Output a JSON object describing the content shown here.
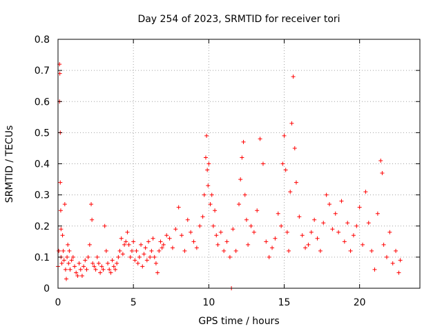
{
  "chart_data": {
    "type": "scatter",
    "title": "Day 254 of 2023, SRMTID for receiver tori",
    "xlabel": "GPS time / hours",
    "ylabel": "SRMTID / TECUs",
    "xlim": [
      0,
      24
    ],
    "ylim": [
      0,
      0.8
    ],
    "xticks": [
      0,
      5,
      10,
      15,
      20
    ],
    "yticks": [
      0,
      0.1,
      0.2,
      0.3,
      0.4,
      0.5,
      0.6,
      0.7,
      0.8
    ],
    "grid": true,
    "marker": "plus",
    "color": "#ff0000",
    "series": [
      {
        "name": "tori",
        "x": [
          0.0,
          0.05,
          0.1,
          0.1,
          0.12,
          0.15,
          0.15,
          0.18,
          0.2,
          0.2,
          0.25,
          0.3,
          0.35,
          0.4,
          0.45,
          0.5,
          0.55,
          0.6,
          0.65,
          0.7,
          0.75,
          0.8,
          0.9,
          1.0,
          1.1,
          1.2,
          1.3,
          1.4,
          1.5,
          1.6,
          1.7,
          1.8,
          1.9,
          2.0,
          2.1,
          2.2,
          2.25,
          2.3,
          2.4,
          2.5,
          2.6,
          2.7,
          2.8,
          2.9,
          3.0,
          3.1,
          3.2,
          3.3,
          3.4,
          3.5,
          3.6,
          3.7,
          3.8,
          3.9,
          4.0,
          4.1,
          4.2,
          4.3,
          4.4,
          4.5,
          4.6,
          4.7,
          4.8,
          4.9,
          5.0,
          5.1,
          5.2,
          5.3,
          5.4,
          5.5,
          5.6,
          5.7,
          5.8,
          5.9,
          6.0,
          6.1,
          6.2,
          6.3,
          6.4,
          6.5,
          6.6,
          6.7,
          6.8,
          6.9,
          7.0,
          7.2,
          7.4,
          7.6,
          7.8,
          8.0,
          8.2,
          8.4,
          8.6,
          8.8,
          9.0,
          9.2,
          9.4,
          9.6,
          9.7,
          9.8,
          9.85,
          9.9,
          9.95,
          10.0,
          10.1,
          10.2,
          10.3,
          10.4,
          10.5,
          10.6,
          10.8,
          11.0,
          11.2,
          11.4,
          11.5,
          11.6,
          11.8,
          12.0,
          12.1,
          12.2,
          12.3,
          12.4,
          12.5,
          12.6,
          12.8,
          13.0,
          13.2,
          13.4,
          13.6,
          13.8,
          14.0,
          14.2,
          14.4,
          14.6,
          14.8,
          14.9,
          15.0,
          15.1,
          15.2,
          15.3,
          15.4,
          15.5,
          15.6,
          15.7,
          15.8,
          16.0,
          16.2,
          16.4,
          16.6,
          16.8,
          17.0,
          17.2,
          17.4,
          17.6,
          17.8,
          18.0,
          18.2,
          18.4,
          18.6,
          18.8,
          19.0,
          19.2,
          19.4,
          19.6,
          19.8,
          20.0,
          20.2,
          20.4,
          20.6,
          20.8,
          21.0,
          21.2,
          21.4,
          21.5,
          21.6,
          21.8,
          22.0,
          22.2,
          22.4,
          22.6,
          22.7
        ],
        "y": [
          0.07,
          0.12,
          0.72,
          0.6,
          0.69,
          0.5,
          0.34,
          0.25,
          0.19,
          0.1,
          0.08,
          0.17,
          0.12,
          0.09,
          0.27,
          0.06,
          0.03,
          0.1,
          0.14,
          0.08,
          0.12,
          0.06,
          0.09,
          0.1,
          0.07,
          0.05,
          0.04,
          0.08,
          0.06,
          0.04,
          0.07,
          0.09,
          0.06,
          0.1,
          0.14,
          0.27,
          0.22,
          0.08,
          0.07,
          0.06,
          0.1,
          0.08,
          0.05,
          0.07,
          0.06,
          0.2,
          0.12,
          0.08,
          0.06,
          0.05,
          0.09,
          0.07,
          0.06,
          0.08,
          0.1,
          0.12,
          0.16,
          0.11,
          0.14,
          0.15,
          0.18,
          0.14,
          0.1,
          0.12,
          0.15,
          0.09,
          0.12,
          0.08,
          0.1,
          0.14,
          0.07,
          0.11,
          0.13,
          0.09,
          0.15,
          0.1,
          0.12,
          0.16,
          0.1,
          0.08,
          0.05,
          0.12,
          0.15,
          0.13,
          0.14,
          0.17,
          0.16,
          0.13,
          0.19,
          0.26,
          0.17,
          0.12,
          0.22,
          0.18,
          0.15,
          0.13,
          0.2,
          0.23,
          0.3,
          0.42,
          0.49,
          0.38,
          0.33,
          0.4,
          0.27,
          0.3,
          0.2,
          0.25,
          0.17,
          0.14,
          0.18,
          0.12,
          0.15,
          0.1,
          0.0,
          0.19,
          0.12,
          0.27,
          0.35,
          0.42,
          0.47,
          0.3,
          0.22,
          0.14,
          0.2,
          0.18,
          0.25,
          0.48,
          0.4,
          0.15,
          0.1,
          0.13,
          0.16,
          0.24,
          0.2,
          0.4,
          0.49,
          0.38,
          0.18,
          0.12,
          0.31,
          0.53,
          0.68,
          0.45,
          0.34,
          0.23,
          0.17,
          0.13,
          0.14,
          0.18,
          0.22,
          0.16,
          0.12,
          0.21,
          0.3,
          0.27,
          0.19,
          0.24,
          0.18,
          0.28,
          0.15,
          0.21,
          0.12,
          0.17,
          0.2,
          0.26,
          0.14,
          0.31,
          0.21,
          0.12,
          0.06,
          0.24,
          0.41,
          0.37,
          0.14,
          0.1,
          0.18,
          0.08,
          0.12,
          0.05,
          0.09
        ]
      }
    ]
  }
}
